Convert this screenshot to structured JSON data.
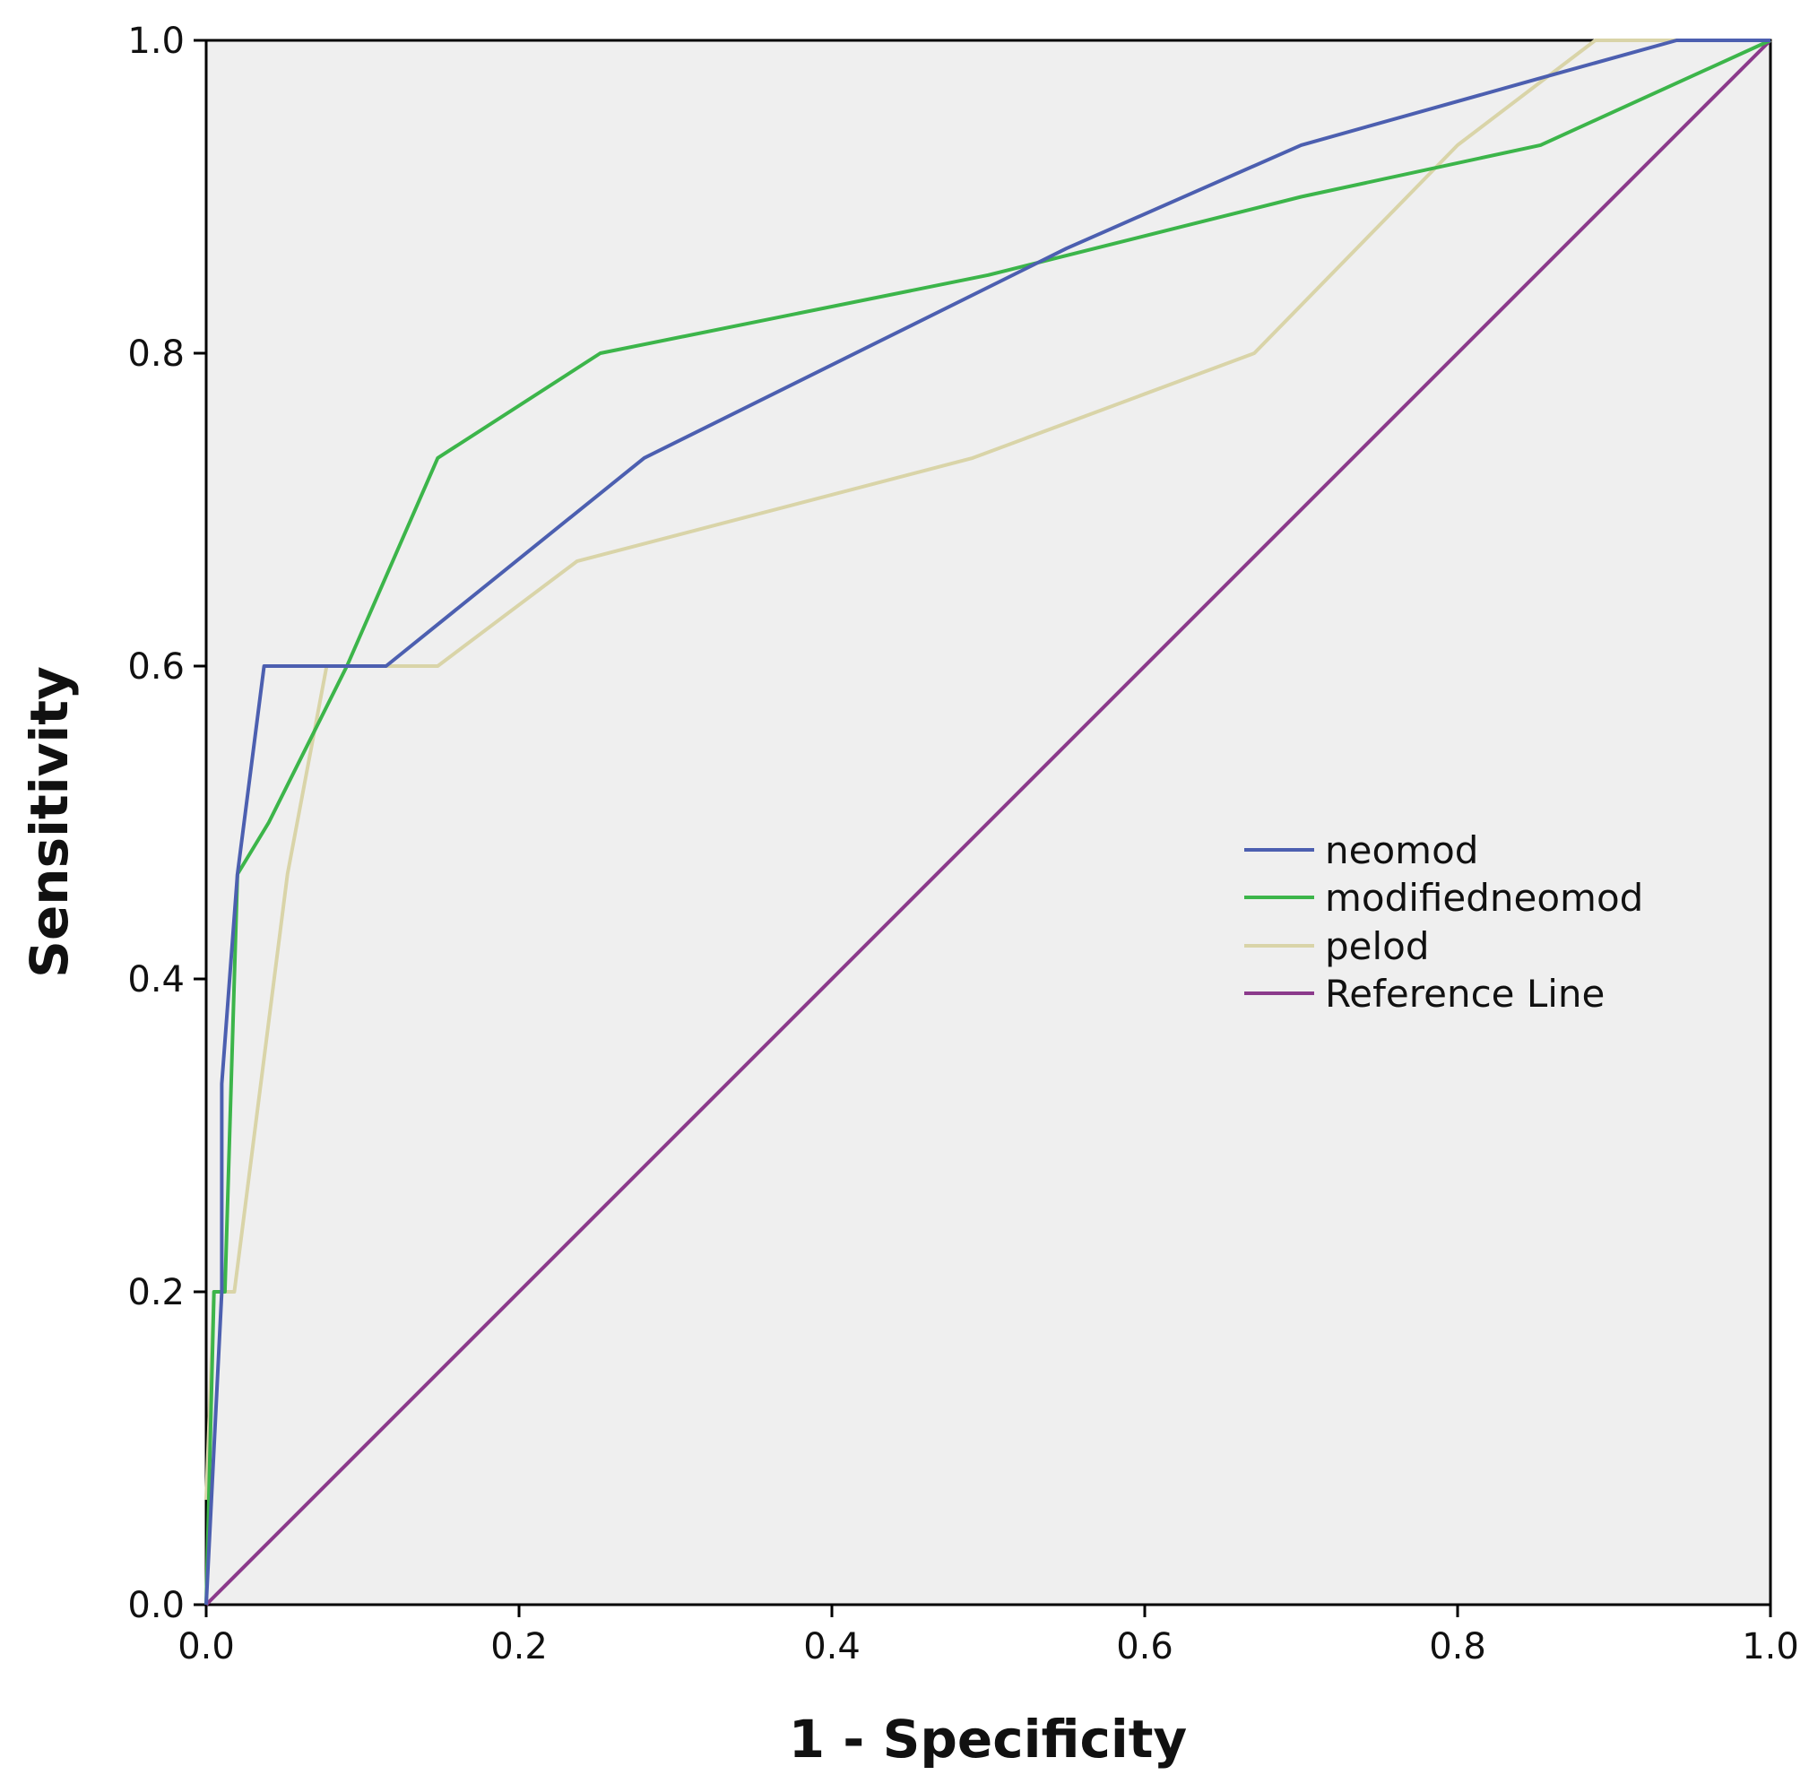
{
  "chart_data": {
    "type": "line",
    "title": "",
    "xlabel": "1 - Specificity",
    "ylabel": "Sensitivity",
    "xlim": [
      0,
      1
    ],
    "ylim": [
      0,
      1
    ],
    "xticks": [
      "0.0",
      "0.2",
      "0.4",
      "0.6",
      "0.8",
      "1.0"
    ],
    "yticks": [
      "0.0",
      "0.2",
      "0.4",
      "0.6",
      "0.8",
      "1.0"
    ],
    "grid": false,
    "legend_position": "center-right",
    "series": [
      {
        "name": "neomod",
        "color": "#4c5fb0",
        "x": [
          0,
          0.01,
          0.01,
          0.02,
          0.037,
          0.115,
          0.28,
          0.55,
          0.7,
          0.85,
          0.94,
          1.0
        ],
        "y": [
          0,
          0.2,
          0.333,
          0.467,
          0.6,
          0.6,
          0.733,
          0.867,
          0.933,
          0.975,
          1.0,
          1.0
        ]
      },
      {
        "name": "modifiedneomod",
        "color": "#3cb54a",
        "x": [
          0,
          0.005,
          0.012,
          0.02,
          0.04,
          0.09,
          0.148,
          0.252,
          0.5,
          0.7,
          0.853,
          1.0
        ],
        "y": [
          0,
          0.2,
          0.2,
          0.467,
          0.5,
          0.6,
          0.733,
          0.8,
          0.85,
          0.9,
          0.933,
          1.0
        ]
      },
      {
        "name": "pelod",
        "color": "#d9d4a8",
        "x": [
          0,
          0.005,
          0.018,
          0.052,
          0.077,
          0.148,
          0.237,
          0.49,
          0.67,
          0.8,
          0.888,
          1.0
        ],
        "y": [
          0.067,
          0.2,
          0.2,
          0.467,
          0.6,
          0.6,
          0.667,
          0.733,
          0.8,
          0.933,
          1.0,
          1.0
        ]
      },
      {
        "name": "Reference Line",
        "color": "#8b3a8b",
        "x": [
          0,
          1
        ],
        "y": [
          0,
          1
        ]
      }
    ]
  }
}
